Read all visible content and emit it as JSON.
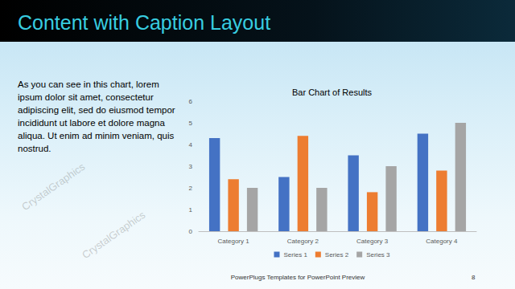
{
  "slide": {
    "title": "Content with Caption Layout",
    "caption": "As you can see in this chart, lorem ipsum dolor sit amet, consectetur adipiscing elit, sed do eiusmod tempor incididunt ut labore et dolore magna aliqua. Ut enim ad minim veniam, quis nostrud.",
    "footer": "PowerPlugs Templates for PowerPoint Preview",
    "page_number": "8",
    "watermark": "CrystalGraphics"
  },
  "chart_data": {
    "type": "bar",
    "title": "Bar Chart of Results",
    "categories": [
      "Category 1",
      "Category 2",
      "Category 3",
      "Category 4"
    ],
    "series": [
      {
        "name": "Series 1",
        "color": "#4472c4",
        "values": [
          4.3,
          2.5,
          3.5,
          4.5
        ]
      },
      {
        "name": "Series 2",
        "color": "#ed7d31",
        "values": [
          2.4,
          4.4,
          1.8,
          2.8
        ]
      },
      {
        "name": "Series 3",
        "color": "#a5a5a5",
        "values": [
          2,
          2,
          3,
          5
        ]
      }
    ],
    "ylim": [
      0,
      6
    ],
    "yticks": [
      0,
      1,
      2,
      3,
      4,
      5,
      6
    ],
    "grid": false,
    "legend": "bottom"
  }
}
